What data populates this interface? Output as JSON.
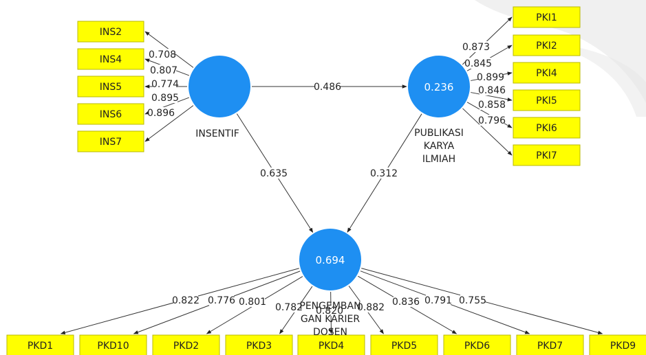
{
  "colors": {
    "construct": "#1e8ff2",
    "indicator_fill": "#ffff00",
    "indicator_border": "#b9b900",
    "edge": "#333333",
    "label": "#222222",
    "watermark": "#e6e6e6"
  },
  "constructs": {
    "insentif": {
      "label": [
        "INSENTIF"
      ],
      "value": ""
    },
    "pki": {
      "label": [
        "PUBLIKASI",
        "KARYA",
        "ILMIAH"
      ],
      "value": "0.236"
    },
    "pkd": {
      "label": [
        "PENGEMBAN",
        "GAN KARIER",
        "DOSEN"
      ],
      "value": "0.694"
    }
  },
  "indicators": {
    "ins": [
      {
        "id": "INS2",
        "loading": "0.708"
      },
      {
        "id": "INS4",
        "loading": "0.807"
      },
      {
        "id": "INS5",
        "loading": "0.774"
      },
      {
        "id": "INS6",
        "loading": "0.895"
      },
      {
        "id": "INS7",
        "loading": "0.896"
      }
    ],
    "pki": [
      {
        "id": "PKI1",
        "loading": "0.873"
      },
      {
        "id": "PKI2",
        "loading": "0.845"
      },
      {
        "id": "PKI4",
        "loading": "0.899"
      },
      {
        "id": "PKI5",
        "loading": "0.846"
      },
      {
        "id": "PKI6",
        "loading": "0.858"
      },
      {
        "id": "PKI7",
        "loading": "0.796"
      }
    ],
    "pkd": [
      {
        "id": "PKD1",
        "loading": "0.822"
      },
      {
        "id": "PKD10",
        "loading": "0.776"
      },
      {
        "id": "PKD2",
        "loading": "0.801"
      },
      {
        "id": "PKD3",
        "loading": "0.782"
      },
      {
        "id": "PKD4",
        "loading": "0.820"
      },
      {
        "id": "PKD5",
        "loading": "0.882"
      },
      {
        "id": "PKD6",
        "loading": "0.836"
      },
      {
        "id": "PKD7",
        "loading": "0.791"
      },
      {
        "id": "PKD9",
        "loading": "0.755"
      }
    ]
  },
  "paths": [
    {
      "from": "insentif",
      "to": "pki",
      "coef": "0.486"
    },
    {
      "from": "insentif",
      "to": "pkd",
      "coef": "0.635"
    },
    {
      "from": "pki",
      "to": "pkd",
      "coef": "0.312"
    }
  ]
}
